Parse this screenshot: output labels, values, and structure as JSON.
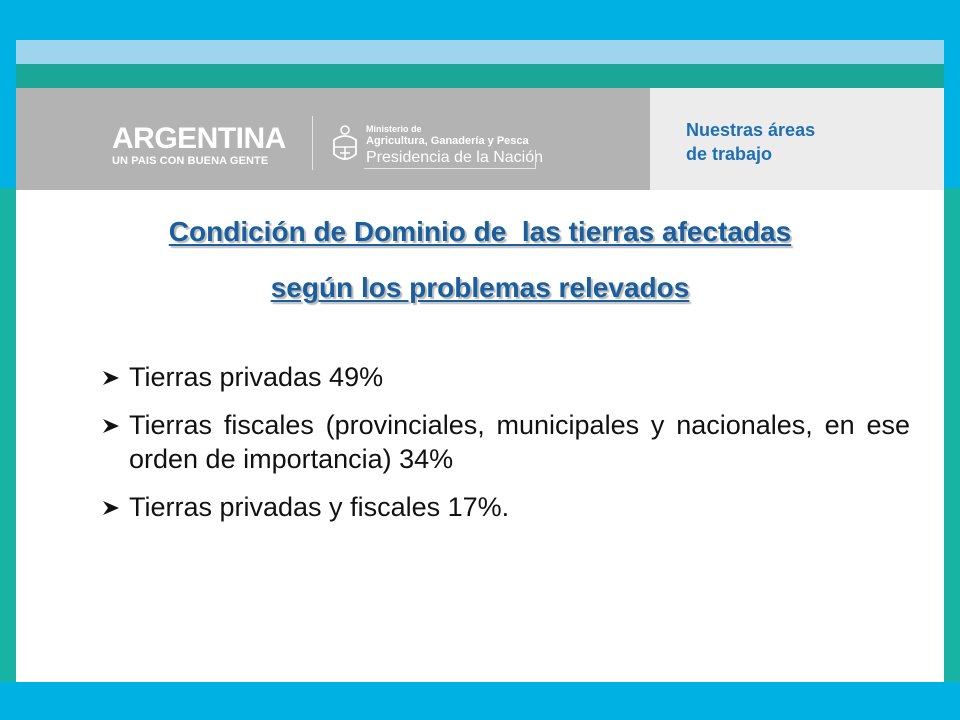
{
  "header": {
    "logo_argentina": "ARGENTINA",
    "logo_slogan": "UN PAIS CON BUENA GENTE",
    "ministry_line1": "Ministerio de",
    "ministry_line2": "Agricultura, Ganadería y Pesca",
    "ministry_line3": "Presidencia de la Nación",
    "areas_line1": "Nuestras áreas",
    "areas_line2": "de trabajo"
  },
  "slide": {
    "title_line1": "Condición de Dominio de  las tierras afectadas",
    "title_line2": "según los problemas relevados",
    "bullets": [
      "Tierras privadas 49%",
      "Tierras fiscales (provinciales, municipales y nacionales, en ese orden de importancia) 34%",
      "Tierras privadas y fiscales 17%."
    ]
  },
  "colors": {
    "outer_blue": "#00b2e3",
    "teal": "#18b3a2",
    "header_gray": "#b3b3b3",
    "title_blue": "#1a5e9e",
    "areas_blue": "#1f6fb5"
  }
}
